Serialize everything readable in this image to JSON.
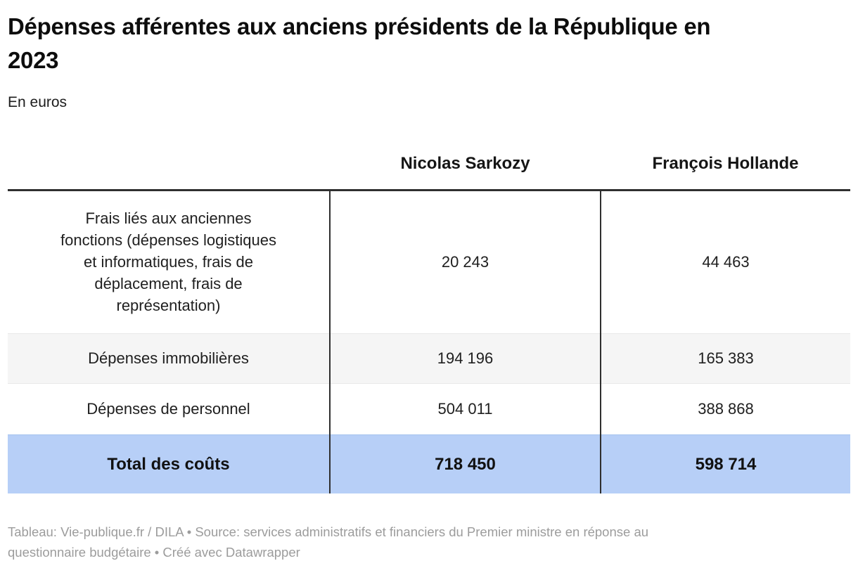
{
  "page": {
    "title": "Dépenses afférentes aux anciens présidents de la République en 2023",
    "subtitle": "En euros",
    "footer": "Tableau: Vie-publique.fr / DILA • Source: services administratifs et financiers du Premier ministre en réponse au\nquestionnaire budgétaire • Créé avec Datawrapper"
  },
  "table": {
    "col_headers": {
      "category": "",
      "sarkozy": "Nicolas Sarkozy",
      "hollande": "François Hollande"
    },
    "rows": [
      {
        "label": "Frais liés aux anciennes\nfonctions (dépenses logistiques\net informatiques, frais de\ndéplacement, frais de\nreprésentation)",
        "sarkozy": "20 243",
        "hollande": "44 463"
      },
      {
        "label": "Dépenses immobilières",
        "sarkozy": "194 196",
        "hollande": "165 383"
      },
      {
        "label": "Dépenses de personnel",
        "sarkozy": "504 011",
        "hollande": "388 868"
      }
    ],
    "total_row": {
      "label": "Total des coûts",
      "sarkozy": "718 450",
      "hollande": "598 714"
    }
  },
  "colors": {
    "total_row_bg": "#b7cff7",
    "alt_row_bg": "#f5f5f5",
    "rule_and_separators": "#2f2f2f",
    "row_divider": "#e9e9e9",
    "footer_text": "#9c9c9c",
    "title_text": "#0d0d0d"
  },
  "chart_data": {
    "type": "table",
    "title": "Dépenses afférentes aux anciens présidents de la République en 2023",
    "subtitle": "En euros",
    "columns": [
      "",
      "Nicolas Sarkozy",
      "François Hollande"
    ],
    "rows": [
      [
        "Frais liés aux anciennes fonctions (dépenses logistiques et informatiques, frais de déplacement, frais de représentation)",
        20243,
        44463
      ],
      [
        "Dépenses immobilières",
        194196,
        165383
      ],
      [
        "Dépenses de personnel",
        504011,
        388868
      ],
      [
        "Total des coûts",
        718450,
        598714
      ]
    ],
    "highlighted_row": "Total des coûts",
    "notes": "Tableau: Vie-publique.fr / DILA • Source: services administratifs et financiers du Premier ministre en réponse au questionnaire budgétaire • Créé avec Datawrapper"
  }
}
